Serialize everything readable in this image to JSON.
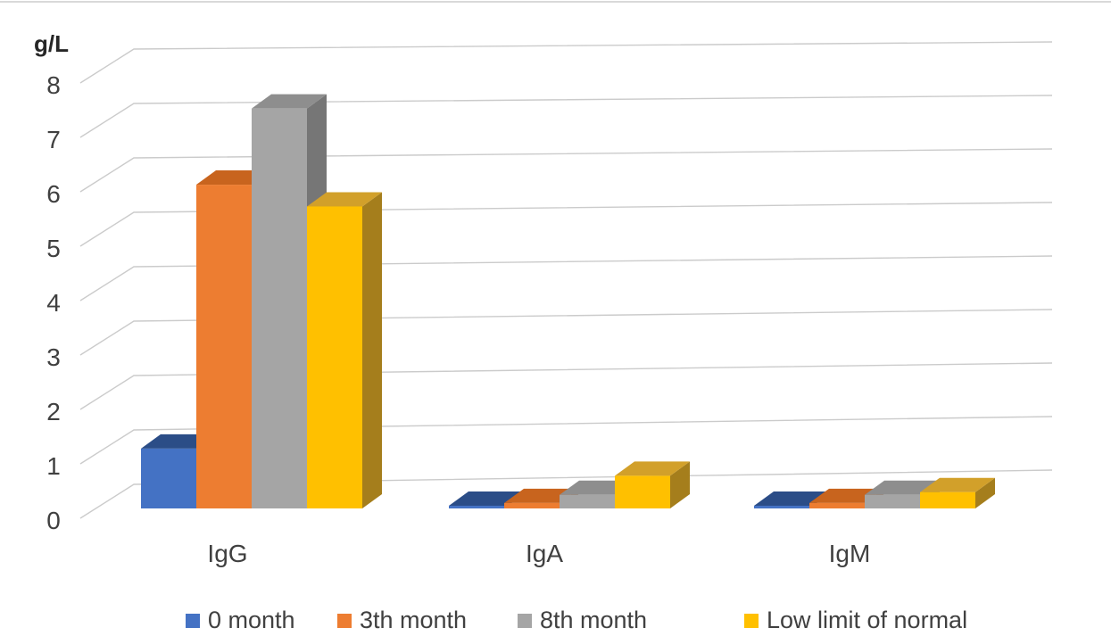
{
  "chart_data": {
    "type": "bar",
    "subtype": "3d-clustered-column",
    "title": "",
    "ylabel": "g/L",
    "xlabel": "",
    "categories": [
      "IgG",
      "IgA",
      "IgM"
    ],
    "series": [
      {
        "name": "0 month",
        "color": "#4472C4",
        "top_color": "#2B4D87",
        "side_color": "#203A66",
        "values": [
          1.1,
          0.05,
          0.05
        ]
      },
      {
        "name": "3th month",
        "color": "#ED7D31",
        "top_color": "#C8641E",
        "side_color": "#A85311",
        "values": [
          5.95,
          0.1,
          0.1
        ]
      },
      {
        "name": "8th month",
        "color": "#A5A5A5",
        "top_color": "#8E8E8E",
        "side_color": "#767676",
        "values": [
          7.35,
          0.25,
          0.25
        ]
      },
      {
        "name": "Low limit of normal",
        "color": "#FFC000",
        "top_color": "#D2A02A",
        "side_color": "#A57E1C",
        "values": [
          5.55,
          0.6,
          0.3
        ]
      }
    ],
    "yticks": [
      0,
      1,
      2,
      3,
      4,
      5,
      6,
      7,
      8
    ],
    "ylim": [
      0,
      8
    ],
    "grid": true,
    "legend_position": "bottom",
    "background": "#FFFFFF",
    "gridline_color": "#CBCBCB",
    "text_color": "#404040"
  }
}
